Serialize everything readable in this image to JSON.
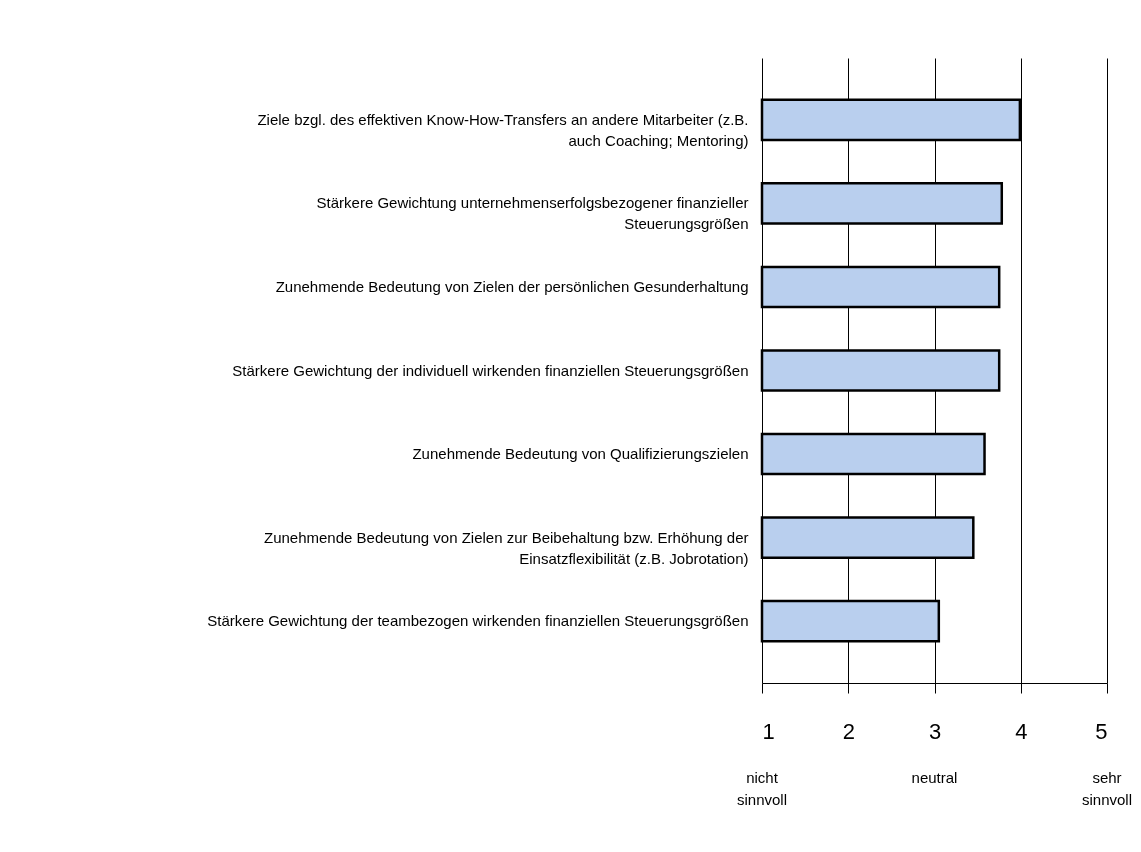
{
  "chart_data": {
    "type": "bar",
    "orientation": "horizontal",
    "categories": [
      "Ziele bzgl. des effektiven Know-How-Transfers an andere Mitarbeiter (z.B. auch Coaching; Mentoring)",
      "Stärkere Gewichtung unternehmenserfolgsbezogener finanzieller Steuerungsgrößen",
      "Zunehmende Bedeutung von Zielen der persönlichen Gesunderhaltung",
      "Stärkere Gewichtung der individuell wirkenden finanziellen Steuerungsgrößen",
      "Zunehmende Bedeutung von Qualifizierungszielen",
      "Zunehmende Bedeutung von Zielen zur Beibehaltung bzw. Erhöhung der Einsatzflexibilität (z.B. Jobrotation)",
      "Stärkere Gewichtung der teambezogen wirkenden finanziellen Steuerungsgrößen"
    ],
    "values": [
      3.99,
      3.78,
      3.75,
      3.75,
      3.58,
      3.45,
      3.05
    ],
    "color": "#b9cfee",
    "xlim": [
      1,
      5
    ],
    "xticks": [
      1,
      2,
      3,
      4,
      5
    ],
    "grid": "x",
    "annotations": [
      "nicht sinnvoll",
      "neutral",
      "sehr sinnvoll"
    ]
  }
}
